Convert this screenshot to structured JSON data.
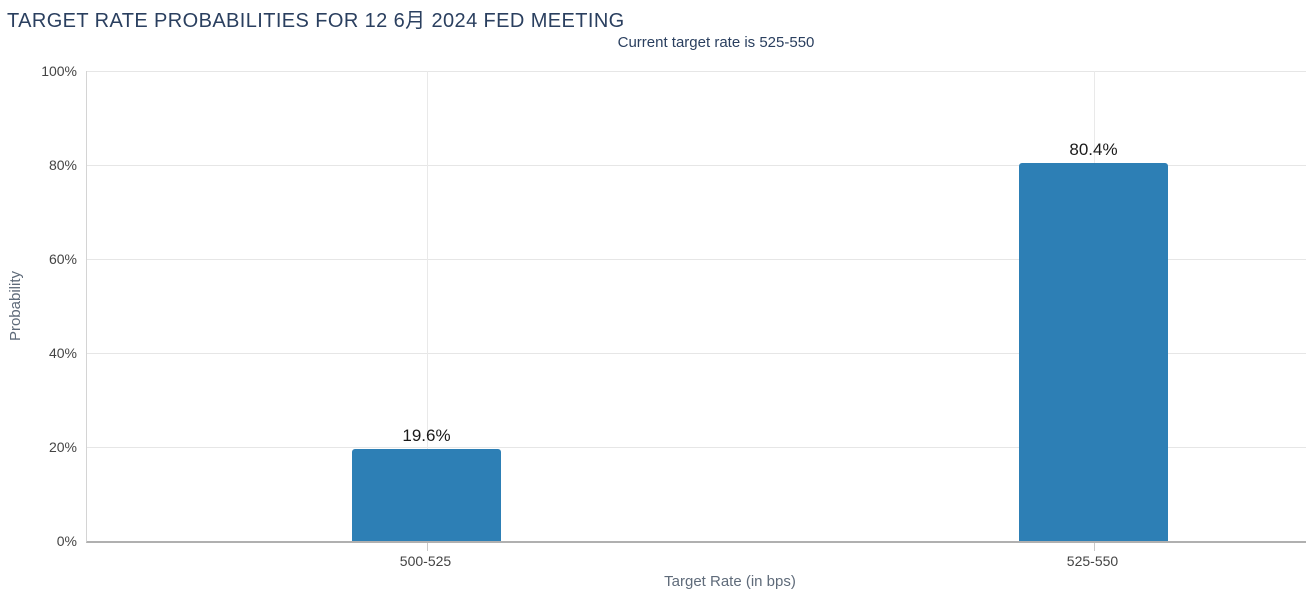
{
  "chart_data": {
    "type": "bar",
    "title": "TARGET RATE PROBABILITIES FOR 12 6月 2024 FED MEETING",
    "subtitle": "Current target rate is 525-550",
    "categories": [
      "500-525",
      "525-550"
    ],
    "values": [
      19.6,
      80.4
    ],
    "value_labels": [
      "19.6%",
      "80.4%"
    ],
    "xlabel": "Target Rate (in bps)",
    "ylabel": "Probability",
    "ylim": [
      0,
      100
    ],
    "ytick_step": 20,
    "ytick_labels": [
      "0%",
      "20%",
      "40%",
      "60%",
      "80%",
      "100%"
    ],
    "grid": true,
    "legend": "none",
    "bar_color": "#2d7fb5"
  },
  "colors": {
    "title": "#2a3f5f",
    "subtitle": "#2a3f5f",
    "bar": "#2d7fb5",
    "axis_title": "#5f6b7a",
    "tick_label": "#444444",
    "gridline": "#e6e6e6",
    "y_axis_line": "#d4d4d4",
    "x_axis_line": "#b0b0b0"
  }
}
